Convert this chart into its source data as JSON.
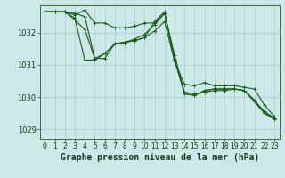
{
  "background_color": "#cce8e8",
  "grid_color": "#aacccc",
  "line_color": "#1a5c1a",
  "text_color": "#1a3a1a",
  "title": "Graphe pression niveau de la mer (hPa)",
  "title_fontsize": 7,
  "tick_fontsize": 6,
  "xlim": [
    -0.5,
    23.5
  ],
  "ylim": [
    1028.7,
    1032.85
  ],
  "yticks": [
    1029,
    1030,
    1031,
    1032
  ],
  "xticks": [
    0,
    1,
    2,
    3,
    4,
    5,
    6,
    7,
    8,
    9,
    10,
    11,
    12,
    13,
    14,
    15,
    16,
    17,
    18,
    19,
    20,
    21,
    22,
    23
  ],
  "series": [
    [
      1032.65,
      1032.65,
      1032.65,
      1032.55,
      1032.7,
      1032.3,
      1032.3,
      1032.15,
      1032.15,
      1032.2,
      1032.3,
      1032.3,
      1032.6,
      1031.3,
      1030.15,
      1030.1,
      1030.15,
      1030.2,
      1030.2,
      1030.25,
      1030.2,
      1029.9,
      1029.55,
      1029.35
    ],
    [
      1032.65,
      1032.65,
      1032.65,
      1032.4,
      1032.1,
      1031.2,
      1031.35,
      1031.65,
      1031.7,
      1031.8,
      1031.95,
      1032.25,
      1032.6,
      1031.2,
      1030.1,
      1030.05,
      1030.2,
      1030.25,
      1030.25,
      1030.25,
      1030.2,
      1029.85,
      1029.5,
      1029.3
    ],
    [
      1032.65,
      1032.65,
      1032.65,
      1032.45,
      1031.15,
      1031.15,
      1031.35,
      1031.65,
      1031.7,
      1031.75,
      1031.85,
      1032.05,
      1032.35,
      1031.1,
      1030.4,
      1030.35,
      1030.45,
      1030.35,
      1030.35,
      1030.35,
      1030.3,
      1030.25,
      1029.75,
      1029.4
    ],
    [
      1032.65,
      1032.65,
      1032.65,
      1032.6,
      1032.5,
      1031.2,
      1031.2,
      1031.65,
      1031.7,
      1031.75,
      1031.85,
      1032.35,
      1032.65,
      1031.15,
      1030.1,
      1030.05,
      1030.2,
      1030.25,
      1030.25,
      1030.25,
      1030.2,
      1029.9,
      1029.5,
      1029.35
    ]
  ]
}
